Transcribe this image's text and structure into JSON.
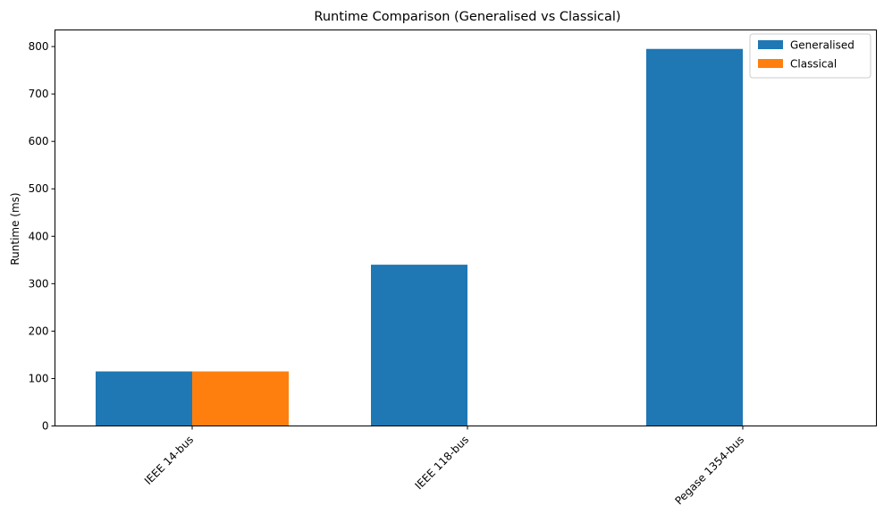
{
  "chart_data": {
    "type": "bar",
    "title": "Runtime Comparison (Generalised vs Classical)",
    "xlabel": "",
    "ylabel": "Runtime (ms)",
    "categories": [
      "IEEE 14-bus",
      "IEEE 118-bus",
      "Pegase 1354-bus"
    ],
    "series": [
      {
        "name": "Generalised",
        "values": [
          115,
          340,
          795
        ],
        "color": "#1f77b4"
      },
      {
        "name": "Classical",
        "values": [
          115,
          0,
          0
        ],
        "color": "#ff7f0e"
      }
    ],
    "ylim": [
      0,
      835
    ],
    "yticks": [
      0,
      100,
      200,
      300,
      400,
      500,
      600,
      700,
      800
    ],
    "grid": false,
    "legend_position": "top-right"
  }
}
